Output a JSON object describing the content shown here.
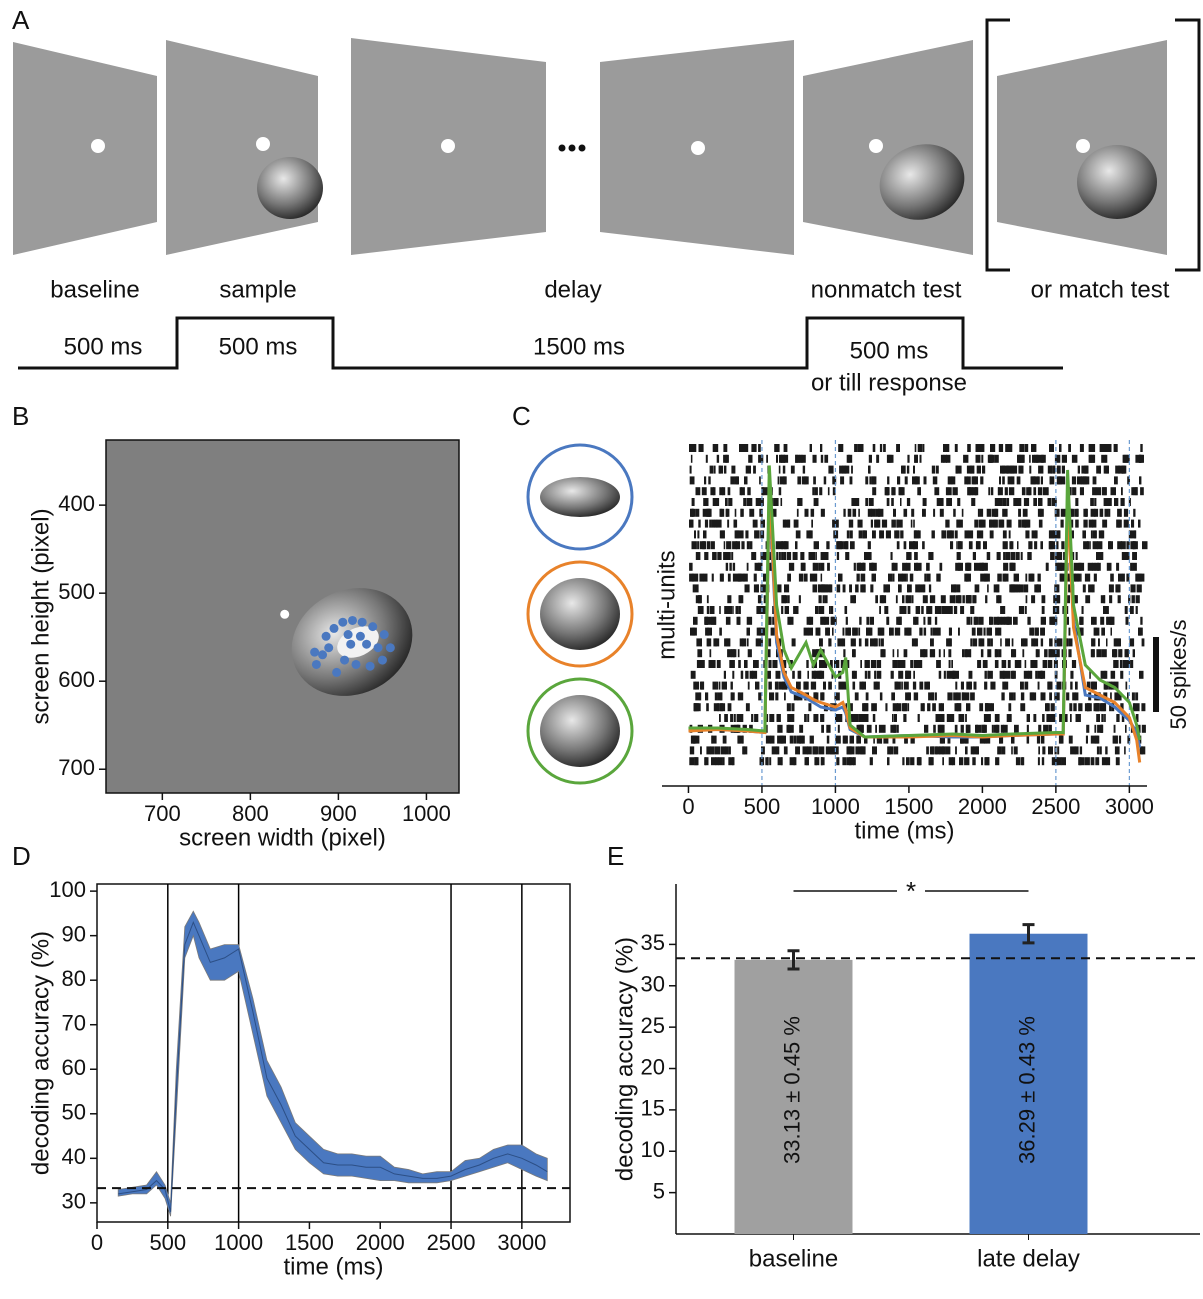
{
  "panel_labels": [
    "A",
    "B",
    "C",
    "D",
    "E"
  ],
  "task": {
    "epochs": [
      "baseline",
      "sample",
      "delay",
      "nonmatch test",
      "or match test"
    ],
    "durations": [
      "500 ms",
      "500 ms",
      "1500 ms",
      "500 ms"
    ],
    "duration_note": "or till response"
  },
  "chart_data": [
    {
      "type": "scatter",
      "xlabel": "screen width (pixel)",
      "ylabel": "screen height (pixel)",
      "xlim": [
        636,
        1037
      ],
      "ylim": [
        727,
        326
      ],
      "xticks": [
        700,
        800,
        900,
        1000
      ],
      "yticks": [
        400,
        500,
        600,
        700
      ],
      "background": "#7f7f7f",
      "series": [
        {
          "color": "#ffffff",
          "x": [
            839
          ],
          "values": [
            524
          ]
        },
        {
          "color": "#4a78c0",
          "x": [
            875,
            882,
            889,
            886,
            895,
            905,
            916,
            927,
            939,
            952,
            959,
            950,
            936,
            920,
            907,
            898,
            914,
            932,
            945,
            925,
            911,
            873
          ],
          "values": [
            581,
            570,
            562,
            549,
            540,
            533,
            531,
            533,
            538,
            547,
            562,
            576,
            583,
            581,
            576,
            590,
            558,
            558,
            562,
            549,
            547,
            567
          ]
        }
      ]
    },
    {
      "type": "line",
      "xlabel": "time (ms)",
      "ylabel": "multi-units",
      "raster": true,
      "xlim": [
        -180,
        3120
      ],
      "ylim": [
        0,
        220
      ],
      "xticks": [
        0,
        500,
        1000,
        1500,
        2000,
        2500,
        3000
      ],
      "vlines": [
        500,
        1000,
        2500,
        3000
      ],
      "vline_color": "#6a9ad0",
      "scalebar": {
        "value": 50,
        "label": "50 spikes/s"
      },
      "x": [
        0,
        200,
        400,
        520,
        550,
        600,
        650,
        700,
        800,
        850,
        900,
        1000,
        1050,
        1070,
        1100,
        1200,
        1500,
        1800,
        2000,
        2200,
        2500,
        2550,
        2580,
        2620,
        2700,
        2800,
        2900,
        3000,
        3050,
        3070
      ],
      "series": [
        {
          "color": "#4a78c0",
          "values": [
            27,
            27,
            26,
            25,
            185,
            85,
            62,
            52,
            48,
            45,
            42,
            40,
            42,
            38,
            27,
            22,
            23,
            22,
            22,
            23,
            24,
            24,
            185,
            100,
            50,
            48,
            42,
            33,
            25,
            15
          ]
        },
        {
          "color": "#e8822a",
          "values": [
            26,
            27,
            26,
            25,
            190,
            90,
            65,
            55,
            50,
            47,
            45,
            42,
            45,
            40,
            28,
            22,
            22,
            23,
            22,
            23,
            24,
            24,
            180,
            95,
            55,
            50,
            45,
            35,
            20,
            5
          ]
        },
        {
          "color": "#5aa63c",
          "values": [
            28,
            28,
            27,
            26,
            203,
            110,
            80,
            68,
            85,
            70,
            80,
            62,
            65,
            75,
            30,
            22,
            23,
            24,
            23,
            24,
            25,
            25,
            200,
            110,
            70,
            60,
            55,
            45,
            30,
            20
          ]
        }
      ]
    },
    {
      "type": "line",
      "xlabel": "time (ms)",
      "ylabel": "decoding accuracy (%)",
      "xlim": [
        0,
        3340
      ],
      "ylim": [
        25.7,
        101.6
      ],
      "xticks": [
        0,
        500,
        1000,
        1500,
        2000,
        2500,
        3000
      ],
      "yticks": [
        30,
        40,
        50,
        60,
        70,
        80,
        90,
        100
      ],
      "vlines": [
        500,
        1000,
        2500,
        3000
      ],
      "vline_color": "#000000",
      "hline": 33.3,
      "x": [
        150,
        250,
        350,
        420,
        480,
        520,
        560,
        620,
        680,
        720,
        800,
        900,
        1000,
        1100,
        1200,
        1300,
        1400,
        1500,
        1600,
        1700,
        1800,
        1900,
        2000,
        2100,
        2200,
        2300,
        2400,
        2500,
        2600,
        2700,
        2800,
        2900,
        3000,
        3100,
        3180
      ],
      "series": [
        {
          "color": "#4a78c0",
          "values": [
            32,
            32.5,
            33,
            35,
            33,
            28,
            55,
            88,
            93,
            90,
            84,
            85,
            87,
            73,
            58,
            52,
            45,
            42,
            39,
            38.5,
            38.5,
            38,
            38,
            36.5,
            36,
            35.5,
            35.5,
            36,
            37.5,
            38.5,
            40,
            41,
            40,
            38.5,
            37
          ],
          "lower": [
            31.5,
            32,
            32,
            34,
            31,
            27,
            50,
            85,
            90,
            85,
            80,
            80,
            82,
            68,
            54,
            48,
            42,
            39,
            36.5,
            36,
            36,
            35.5,
            35,
            35,
            34.5,
            34.5,
            34.5,
            35,
            36,
            37,
            38,
            39,
            37.5,
            36,
            35
          ],
          "upper": [
            33,
            33.5,
            34,
            37,
            34,
            30,
            60,
            92,
            95.5,
            93,
            87,
            88,
            88,
            76,
            62,
            56,
            48,
            45,
            42,
            41,
            41,
            40.5,
            40.5,
            38,
            37.5,
            36.5,
            37,
            37,
            39.5,
            40,
            42,
            43,
            43,
            41,
            40
          ]
        }
      ]
    },
    {
      "type": "bar",
      "ylabel": "decoding accuracy (%)",
      "categories": [
        "baseline",
        "late delay"
      ],
      "values": [
        33.13,
        36.29
      ],
      "value_labels": [
        "33.13 ± 0.45 %",
        "36.29 ± 0.43 %"
      ],
      "errors": [
        1.1,
        1.1
      ],
      "colors": [
        "#a0a0a0",
        "#4a78c0"
      ],
      "ylim": [
        0,
        42.3
      ],
      "yticks": [
        5,
        10,
        15,
        20,
        25,
        30,
        35
      ],
      "hline": 33.33,
      "annotation": "*"
    }
  ]
}
